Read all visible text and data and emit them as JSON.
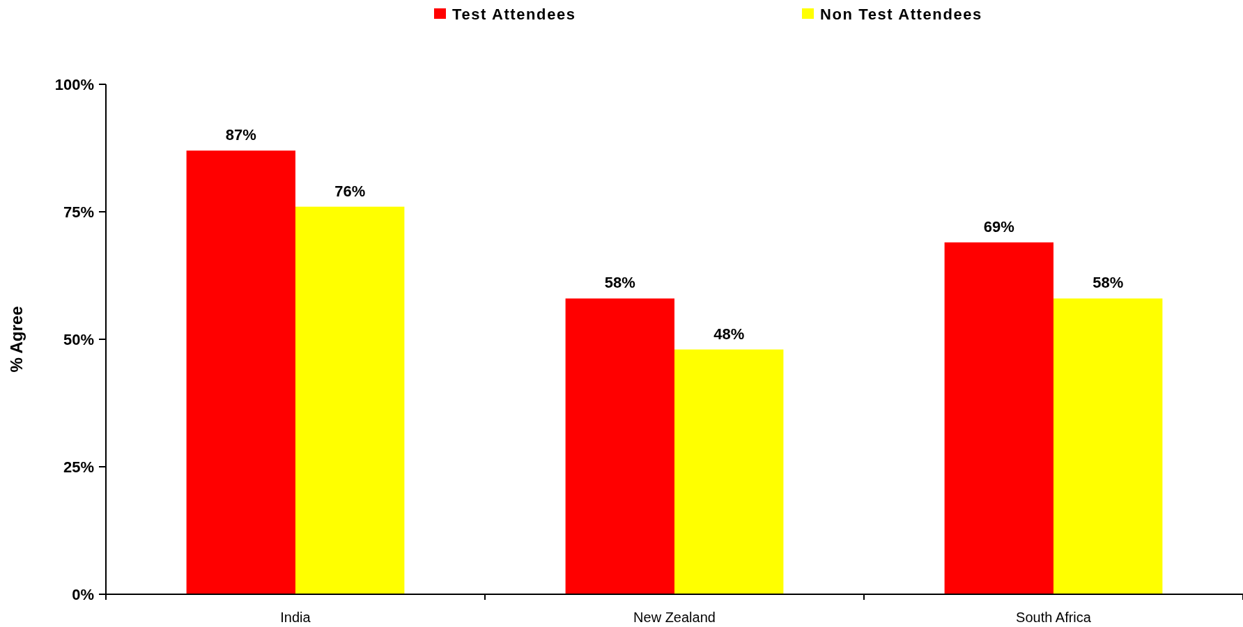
{
  "chart_data": {
    "type": "bar",
    "ylabel": "% Agree",
    "categories": [
      "India",
      "New Zealand",
      "South Africa"
    ],
    "series": [
      {
        "name": "Test Attendees",
        "color": "#ff0000",
        "values": [
          87,
          58,
          69
        ],
        "value_labels": [
          "87%",
          "58%",
          "69%"
        ]
      },
      {
        "name": "Non Test Attendees",
        "color": "#ffff00",
        "values": [
          76,
          48,
          58
        ],
        "value_labels": [
          "76%",
          "48%",
          "58%"
        ]
      }
    ],
    "ylim": [
      0,
      100
    ],
    "yticks": [
      {
        "value": 0,
        "label": "0%"
      },
      {
        "value": 25,
        "label": "25%"
      },
      {
        "value": 50,
        "label": "50%"
      },
      {
        "value": 75,
        "label": "75%"
      },
      {
        "value": 100,
        "label": "100%"
      }
    ],
    "grid": false,
    "legend": "top"
  }
}
